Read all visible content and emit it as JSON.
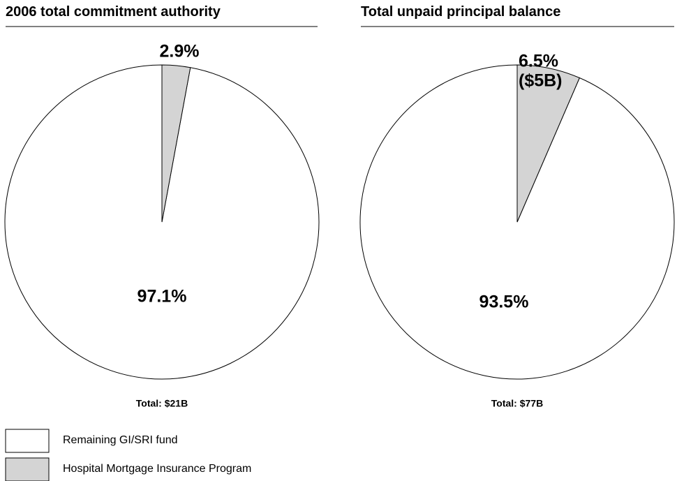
{
  "chart_data": [
    {
      "type": "pie",
      "title": "2006 total commitment authority",
      "categories": [
        "Remaining GI/SRI fund",
        "Hospital Mortgage Insurance Program"
      ],
      "values": [
        97.1,
        2.9
      ],
      "value_labels": [
        "97.1%",
        "2.9%"
      ],
      "colors": [
        "#ffffff",
        "#d4d4d4"
      ],
      "counterclock": true,
      "total_label": "Total: $21B"
    },
    {
      "type": "pie",
      "title": "Total unpaid principal balance",
      "categories": [
        "Remaining GI/SRI fund",
        "Hospital Mortgage Insurance Program"
      ],
      "values": [
        93.5,
        6.5
      ],
      "value_labels": [
        "93.5%",
        "6.5%\n($5B)"
      ],
      "colors": [
        "#ffffff",
        "#d4d4d4"
      ],
      "counterclock": true,
      "total_label": "Total: $77B"
    }
  ]
}
